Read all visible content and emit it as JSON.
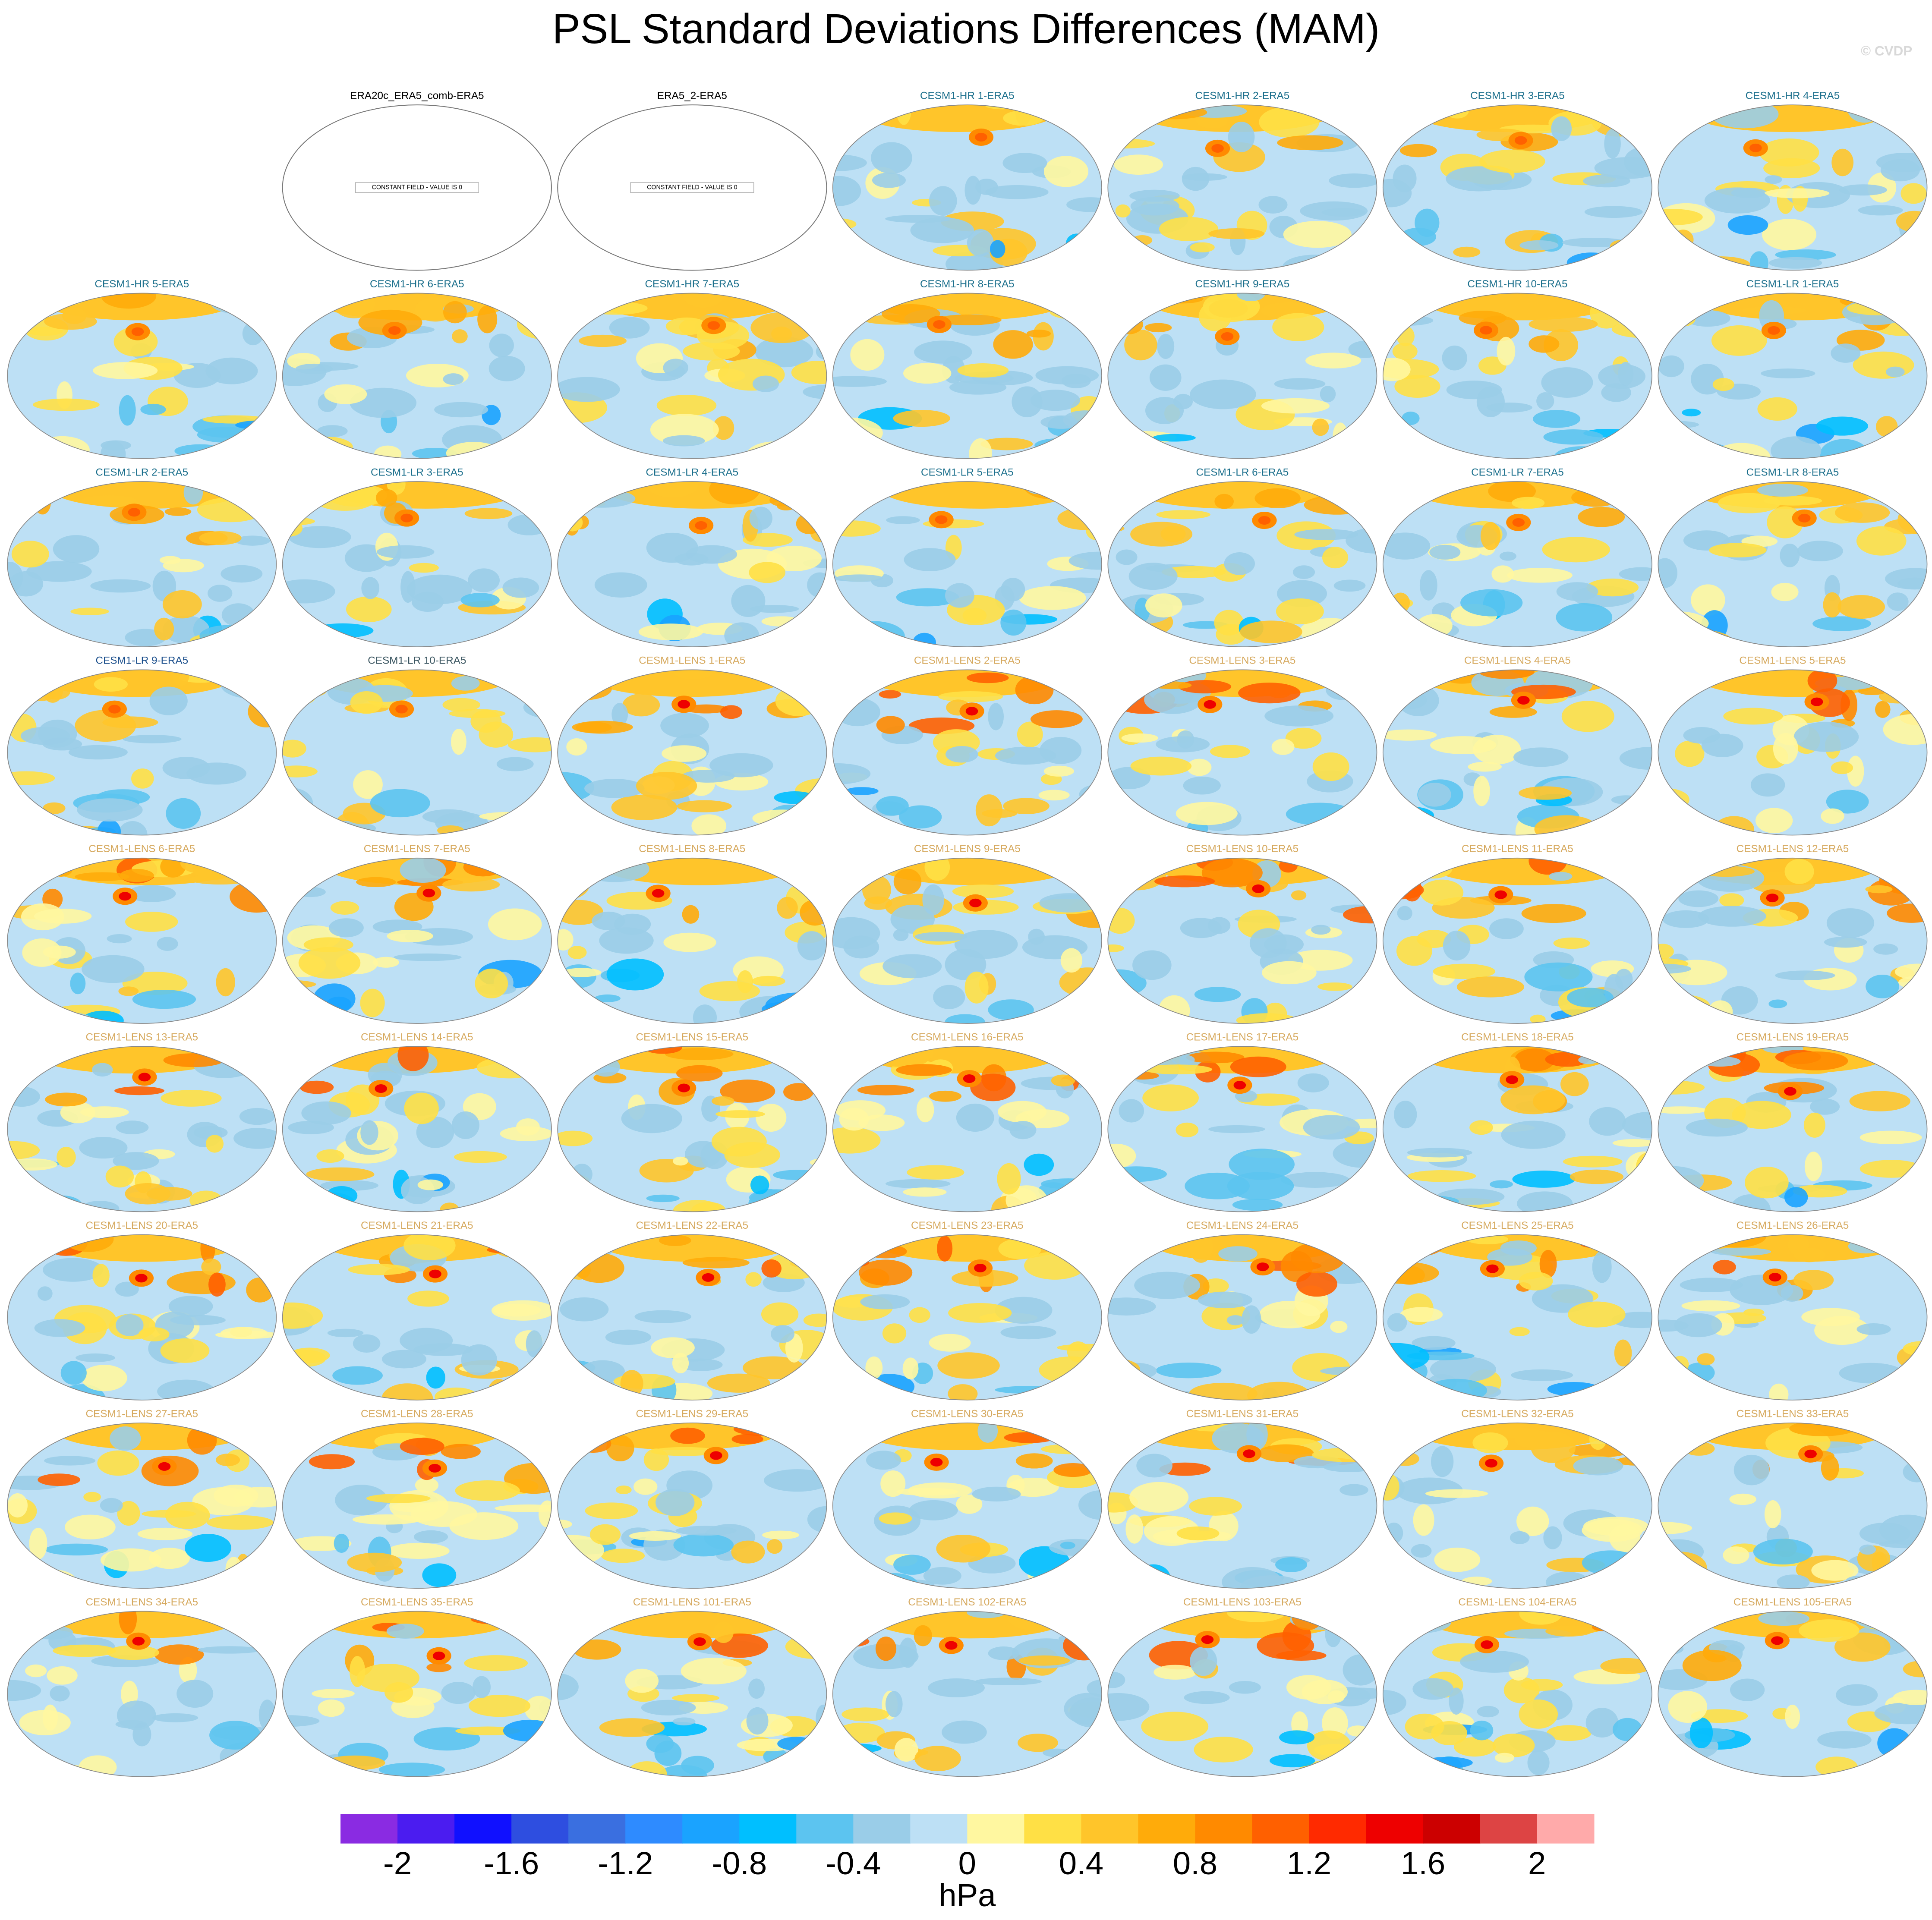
{
  "title": "PSL Standard Deviations Differences (MAM)",
  "credit": "© CVDP",
  "panels": [
    {
      "title": "ERA20c_ERA5_comb-ERA5",
      "color": "#000000",
      "note": "CONSTANT FIELD - VALUE IS 0"
    },
    {
      "title": "ERA5_2-ERA5",
      "color": "#000000",
      "note": "CONSTANT FIELD - VALUE IS 0"
    },
    {
      "title": "CESM1-HR 1-ERA5",
      "color": "#1b6f8c"
    },
    {
      "title": "CESM1-HR 2-ERA5",
      "color": "#1b6f8c"
    },
    {
      "title": "CESM1-HR 3-ERA5",
      "color": "#1b6f8c"
    },
    {
      "title": "CESM1-HR 4-ERA5",
      "color": "#1b6f8c"
    },
    {
      "title": "CESM1-HR 5-ERA5",
      "color": "#1b6f8c"
    },
    {
      "title": "CESM1-HR 6-ERA5",
      "color": "#1b6f8c"
    },
    {
      "title": "CESM1-HR 7-ERA5",
      "color": "#1b6f8c"
    },
    {
      "title": "CESM1-HR 8-ERA5",
      "color": "#1b6f8c"
    },
    {
      "title": "CESM1-HR 9-ERA5",
      "color": "#1b6f8c"
    },
    {
      "title": "CESM1-HR 10-ERA5",
      "color": "#1b6f8c"
    },
    {
      "title": "CESM1-LR 1-ERA5",
      "color": "#1b6f8c"
    },
    {
      "title": "CESM1-LR 2-ERA5",
      "color": "#1b6f8c"
    },
    {
      "title": "CESM1-LR 3-ERA5",
      "color": "#1b6f8c"
    },
    {
      "title": "CESM1-LR 4-ERA5",
      "color": "#1b6f8c"
    },
    {
      "title": "CESM1-LR 5-ERA5",
      "color": "#1b6f8c"
    },
    {
      "title": "CESM1-LR 6-ERA5",
      "color": "#1b6f8c"
    },
    {
      "title": "CESM1-LR 7-ERA5",
      "color": "#1b6f8c"
    },
    {
      "title": "CESM1-LR 8-ERA5",
      "color": "#1b6f8c"
    },
    {
      "title": "CESM1-LR 9-ERA5",
      "color": "#1b4f8c"
    },
    {
      "title": "CESM1-LR 10-ERA5",
      "color": "#3a5560"
    },
    {
      "title": "CESM1-LENS 1-ERA5",
      "color": "#d6a95e"
    },
    {
      "title": "CESM1-LENS 2-ERA5",
      "color": "#d6a95e"
    },
    {
      "title": "CESM1-LENS 3-ERA5",
      "color": "#d6a95e"
    },
    {
      "title": "CESM1-LENS 4-ERA5",
      "color": "#d6a95e"
    },
    {
      "title": "CESM1-LENS 5-ERA5",
      "color": "#d6a95e"
    },
    {
      "title": "CESM1-LENS 6-ERA5",
      "color": "#d6a95e"
    },
    {
      "title": "CESM1-LENS 7-ERA5",
      "color": "#d6a95e"
    },
    {
      "title": "CESM1-LENS 8-ERA5",
      "color": "#d6a95e"
    },
    {
      "title": "CESM1-LENS 9-ERA5",
      "color": "#d6a95e"
    },
    {
      "title": "CESM1-LENS 10-ERA5",
      "color": "#d6a95e"
    },
    {
      "title": "CESM1-LENS 11-ERA5",
      "color": "#d6a95e"
    },
    {
      "title": "CESM1-LENS 12-ERA5",
      "color": "#d6a95e"
    },
    {
      "title": "CESM1-LENS 13-ERA5",
      "color": "#d6a95e"
    },
    {
      "title": "CESM1-LENS 14-ERA5",
      "color": "#d6a95e"
    },
    {
      "title": "CESM1-LENS 15-ERA5",
      "color": "#d6a95e"
    },
    {
      "title": "CESM1-LENS 16-ERA5",
      "color": "#d6a95e"
    },
    {
      "title": "CESM1-LENS 17-ERA5",
      "color": "#d6a95e"
    },
    {
      "title": "CESM1-LENS 18-ERA5",
      "color": "#d6a95e"
    },
    {
      "title": "CESM1-LENS 19-ERA5",
      "color": "#d6a95e"
    },
    {
      "title": "CESM1-LENS 20-ERA5",
      "color": "#d6a95e"
    },
    {
      "title": "CESM1-LENS 21-ERA5",
      "color": "#d6a95e"
    },
    {
      "title": "CESM1-LENS 22-ERA5",
      "color": "#d6a95e"
    },
    {
      "title": "CESM1-LENS 23-ERA5",
      "color": "#d6a95e"
    },
    {
      "title": "CESM1-LENS 24-ERA5",
      "color": "#d6a95e"
    },
    {
      "title": "CESM1-LENS 25-ERA5",
      "color": "#d6a95e"
    },
    {
      "title": "CESM1-LENS 26-ERA5",
      "color": "#d6a95e"
    },
    {
      "title": "CESM1-LENS 27-ERA5",
      "color": "#d6a95e"
    },
    {
      "title": "CESM1-LENS 28-ERA5",
      "color": "#d6a95e"
    },
    {
      "title": "CESM1-LENS 29-ERA5",
      "color": "#d6a95e"
    },
    {
      "title": "CESM1-LENS 30-ERA5",
      "color": "#d6a95e"
    },
    {
      "title": "CESM1-LENS 31-ERA5",
      "color": "#d6a95e"
    },
    {
      "title": "CESM1-LENS 32-ERA5",
      "color": "#d6a95e"
    },
    {
      "title": "CESM1-LENS 33-ERA5",
      "color": "#d6a95e"
    },
    {
      "title": "CESM1-LENS 34-ERA5",
      "color": "#d6a95e"
    },
    {
      "title": "CESM1-LENS 35-ERA5",
      "color": "#d6a95e"
    },
    {
      "title": "CESM1-LENS 101-ERA5",
      "color": "#d6a95e"
    },
    {
      "title": "CESM1-LENS 102-ERA5",
      "color": "#d6a95e"
    },
    {
      "title": "CESM1-LENS 103-ERA5",
      "color": "#d6a95e"
    },
    {
      "title": "CESM1-LENS 104-ERA5",
      "color": "#d6a95e"
    },
    {
      "title": "CESM1-LENS 105-ERA5",
      "color": "#d6a95e"
    }
  ],
  "colorbar": {
    "levels": [
      -2,
      -1.8,
      -1.6,
      -1.4,
      -1.2,
      -1,
      -0.8,
      -0.6,
      -0.4,
      -0.2,
      0,
      0.2,
      0.4,
      0.6,
      0.8,
      1,
      1.2,
      1.4,
      1.6,
      1.8,
      2
    ],
    "colors": [
      "#8a2be2",
      "#4b1cf0",
      "#1010ff",
      "#2e4ee0",
      "#3a6fe0",
      "#2e8bff",
      "#1aa3ff",
      "#00bfff",
      "#5cc4f0",
      "#9acde8",
      "#bde0f5",
      "#fff7a0",
      "#ffe045",
      "#ffc52a",
      "#ffab0a",
      "#ff8a00",
      "#ff6000",
      "#ff2a00",
      "#ee0000",
      "#cc0000",
      "#dd4444",
      "#ffaaaa"
    ],
    "ticks": [
      -2,
      -1.6,
      -1.2,
      -0.8,
      -0.4,
      0,
      0.4,
      0.8,
      1.2,
      1.6,
      2
    ],
    "unit": "hPa"
  }
}
